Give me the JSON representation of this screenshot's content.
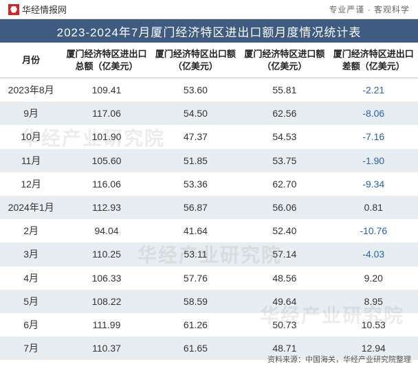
{
  "topbar": {
    "site_name": "华经情报网",
    "slogan": "专业严谨 · 客观科学"
  },
  "title": "2023-2024年7月厦门经济特区进出口额月度情况统计表",
  "columns": [
    "月份",
    "厦门经济特区进出口总额（亿美元）",
    "厦门经济特区出口额（亿美元）",
    "厦门经济特区进口额（亿美元）",
    "厦门经济特区进出口差额（亿美元）"
  ],
  "rows": [
    {
      "month": "2023年8月",
      "total": "109.41",
      "export": "53.60",
      "import": "55.81",
      "diff": "-2.21",
      "diff_neg": true
    },
    {
      "month": "9月",
      "total": "117.06",
      "export": "54.50",
      "import": "62.56",
      "diff": "-8.06",
      "diff_neg": true
    },
    {
      "month": "10月",
      "total": "101.90",
      "export": "47.37",
      "import": "54.53",
      "diff": "-7.16",
      "diff_neg": true
    },
    {
      "month": "11月",
      "total": "105.60",
      "export": "51.85",
      "import": "53.75",
      "diff": "-1.90",
      "diff_neg": true
    },
    {
      "month": "12月",
      "total": "116.06",
      "export": "53.36",
      "import": "62.70",
      "diff": "-9.34",
      "diff_neg": true
    },
    {
      "month": "2024年1月",
      "total": "112.93",
      "export": "56.87",
      "import": "56.06",
      "diff": "0.81",
      "diff_neg": false
    },
    {
      "month": "2月",
      "total": "94.04",
      "export": "41.64",
      "import": "52.40",
      "diff": "-10.76",
      "diff_neg": true
    },
    {
      "month": "3月",
      "total": "110.25",
      "export": "53.11",
      "import": "57.14",
      "diff": "-4.03",
      "diff_neg": true
    },
    {
      "month": "4月",
      "total": "106.33",
      "export": "57.76",
      "import": "48.56",
      "diff": "9.20",
      "diff_neg": false
    },
    {
      "month": "5月",
      "total": "108.22",
      "export": "58.59",
      "import": "49.64",
      "diff": "8.95",
      "diff_neg": false
    },
    {
      "month": "6月",
      "total": "111.99",
      "export": "61.26",
      "import": "50.73",
      "diff": "10.53",
      "diff_neg": false
    },
    {
      "month": "7月",
      "total": "110.37",
      "export": "61.65",
      "import": "48.71",
      "diff": "12.94",
      "diff_neg": false
    }
  ],
  "footer": "资料来源：中国海关，华经产业研究院整理",
  "watermark": "华经产业研究院",
  "style": {
    "header_bg": "#3f5b82",
    "header_fg": "#ffffff",
    "row_even_bg": "#e8edf1",
    "row_odd_bg": "#ffffff",
    "negative_color": "#1f63b5",
    "text_color": "#333333",
    "title_fontsize": 17,
    "cell_fontsize": 14,
    "header_fontsize": 13
  }
}
